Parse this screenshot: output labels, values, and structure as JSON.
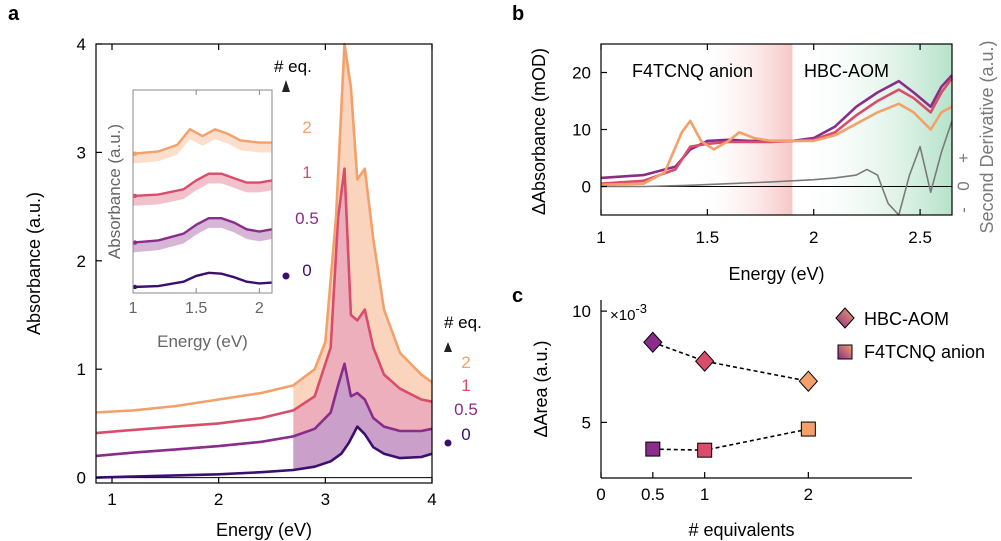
{
  "panels": {
    "a": "a",
    "b": "b",
    "c": "c"
  },
  "colors": {
    "eq0": "#3a0f6e",
    "eq05": "#8a2c8a",
    "eq1": "#d94d6a",
    "eq2": "#f4a06a",
    "gray": "#7a7a7a",
    "anion_shade": "#f8c9c9",
    "aom_shade": "#bfe6cf"
  },
  "chart_data": [
    {
      "id": "a-main",
      "type": "line",
      "xlabel": "Energy (eV)",
      "ylabel": "Absorbance (a.u.)",
      "xlim": [
        0.85,
        4.0
      ],
      "ylim": [
        -0.05,
        4.0
      ],
      "xticks": [
        "1",
        "2",
        "3",
        "4"
      ],
      "yticks": [
        "0",
        "1",
        "2",
        "3",
        "4"
      ],
      "legend_title": "# eq.",
      "legend_labels": [
        "2",
        "1",
        "0.5",
        "0"
      ],
      "series": [
        {
          "name": "0",
          "x": [
            0.85,
            1.2,
            1.6,
            2.0,
            2.4,
            2.7,
            2.9,
            3.05,
            3.15,
            3.22,
            3.3,
            3.37,
            3.45,
            3.55,
            3.7,
            3.9,
            4.0
          ],
          "y": [
            0.0,
            0.01,
            0.02,
            0.03,
            0.05,
            0.07,
            0.1,
            0.15,
            0.22,
            0.32,
            0.47,
            0.4,
            0.28,
            0.22,
            0.18,
            0.19,
            0.22
          ]
        },
        {
          "name": "0.5",
          "x": [
            0.85,
            1.2,
            1.6,
            2.0,
            2.4,
            2.7,
            2.9,
            3.05,
            3.12,
            3.18,
            3.24,
            3.3,
            3.37,
            3.45,
            3.55,
            3.7,
            3.9,
            4.0
          ],
          "y": [
            0.2,
            0.23,
            0.26,
            0.29,
            0.33,
            0.38,
            0.45,
            0.6,
            0.85,
            1.05,
            0.75,
            0.78,
            0.72,
            0.55,
            0.47,
            0.43,
            0.43,
            0.45
          ]
        },
        {
          "name": "1",
          "x": [
            0.85,
            1.2,
            1.6,
            2.0,
            2.4,
            2.7,
            2.9,
            3.05,
            3.12,
            3.18,
            3.24,
            3.3,
            3.37,
            3.45,
            3.55,
            3.7,
            3.9,
            4.0
          ],
          "y": [
            0.41,
            0.44,
            0.47,
            0.5,
            0.55,
            0.62,
            0.75,
            1.2,
            2.4,
            2.85,
            1.5,
            1.45,
            1.55,
            1.2,
            0.95,
            0.82,
            0.72,
            0.7
          ]
        },
        {
          "name": "2",
          "x": [
            0.85,
            1.2,
            1.6,
            2.0,
            2.4,
            2.7,
            2.9,
            3.0,
            3.1,
            3.18,
            3.24,
            3.3,
            3.37,
            3.45,
            3.55,
            3.7,
            3.9,
            4.0
          ],
          "y": [
            0.6,
            0.62,
            0.66,
            0.72,
            0.78,
            0.85,
            1.0,
            1.25,
            2.4,
            4.0,
            3.6,
            2.75,
            2.85,
            2.2,
            1.55,
            1.15,
            0.95,
            0.88
          ]
        }
      ],
      "shaded_bands": [
        {
          "upper": "2",
          "lower": "1",
          "color": "#f4a06a"
        },
        {
          "upper": "1",
          "lower": "0.5",
          "color": "#d94d6a"
        },
        {
          "upper": "0.5",
          "lower": "0",
          "color": "#8a2c8a"
        }
      ]
    },
    {
      "id": "a-inset",
      "type": "line",
      "xlabel": "Energy (eV)",
      "ylabel": "Absorbance (a.u.)",
      "xlim": [
        1.0,
        2.1
      ],
      "ylim": [
        0,
        4.3
      ],
      "xticks": [
        "1",
        "1.5",
        "2"
      ],
      "series": [
        {
          "name": "0",
          "x": [
            1.0,
            1.2,
            1.4,
            1.5,
            1.6,
            1.7,
            1.8,
            1.9,
            2.0,
            2.1
          ],
          "y": [
            0.0,
            0.02,
            0.12,
            0.25,
            0.32,
            0.3,
            0.22,
            0.12,
            0.08,
            0.1
          ]
        },
        {
          "name": "0.5",
          "x": [
            1.0,
            1.2,
            1.4,
            1.5,
            1.6,
            1.7,
            1.8,
            1.9,
            2.0,
            2.1
          ],
          "y": [
            1.0,
            1.05,
            1.2,
            1.4,
            1.55,
            1.55,
            1.45,
            1.3,
            1.25,
            1.3
          ]
        },
        {
          "name": "1",
          "x": [
            1.0,
            1.2,
            1.4,
            1.5,
            1.6,
            1.7,
            1.8,
            1.9,
            2.0,
            2.1
          ],
          "y": [
            2.05,
            2.08,
            2.2,
            2.4,
            2.55,
            2.55,
            2.45,
            2.35,
            2.35,
            2.4
          ]
        },
        {
          "name": "2",
          "x": [
            1.0,
            1.2,
            1.35,
            1.45,
            1.55,
            1.65,
            1.75,
            1.85,
            2.0,
            2.1
          ],
          "y": [
            3.0,
            3.05,
            3.2,
            3.55,
            3.4,
            3.55,
            3.45,
            3.3,
            3.25,
            3.25
          ]
        }
      ]
    },
    {
      "id": "b",
      "type": "line",
      "xlabel": "Energy (eV)",
      "ylabel": "ΔAbsorbance (mOD)",
      "right_ylabel": "Second Derivative (a.u.)",
      "right_ticks": [
        "+",
        "0",
        "-"
      ],
      "xlim": [
        1.0,
        2.65
      ],
      "ylim": [
        -5,
        25
      ],
      "xticks": [
        "1",
        "1.5",
        "2",
        "2.5"
      ],
      "yticks": [
        "0",
        "10",
        "20"
      ],
      "regions": [
        {
          "label": "F4TCNQ anion",
          "x0": 1.0,
          "x1": 1.9
        },
        {
          "label": "HBC-AOM",
          "x0": 1.9,
          "x1": 2.65
        }
      ],
      "series": [
        {
          "name": "0.5",
          "x": [
            1.0,
            1.2,
            1.35,
            1.42,
            1.5,
            1.6,
            1.7,
            1.8,
            1.9,
            2.0,
            2.1,
            2.2,
            2.3,
            2.4,
            2.47,
            2.55,
            2.6,
            2.65
          ],
          "y": [
            1.5,
            2.0,
            3.5,
            6.5,
            8.0,
            8.2,
            8.0,
            8.0,
            8.0,
            8.5,
            10.5,
            14.0,
            16.5,
            18.5,
            16.5,
            14.0,
            17.5,
            19.5
          ]
        },
        {
          "name": "1",
          "x": [
            1.0,
            1.2,
            1.35,
            1.42,
            1.5,
            1.6,
            1.7,
            1.8,
            1.9,
            2.0,
            2.1,
            2.2,
            2.3,
            2.4,
            2.47,
            2.55,
            2.6,
            2.65
          ],
          "y": [
            0.5,
            1.0,
            3.0,
            7.0,
            7.5,
            7.8,
            7.8,
            7.8,
            8.0,
            8.2,
            9.5,
            12.5,
            15.0,
            17.0,
            15.5,
            13.0,
            16.5,
            19.0
          ]
        },
        {
          "name": "2",
          "x": [
            1.0,
            1.2,
            1.3,
            1.38,
            1.42,
            1.47,
            1.53,
            1.6,
            1.65,
            1.72,
            1.8,
            1.9,
            2.0,
            2.1,
            2.2,
            2.3,
            2.4,
            2.47,
            2.55,
            2.6,
            2.65
          ],
          "y": [
            0.3,
            0.5,
            2.5,
            9.5,
            11.5,
            8.0,
            6.5,
            8.0,
            9.5,
            8.5,
            8.0,
            8.0,
            8.0,
            9.0,
            11.0,
            13.0,
            14.5,
            13.0,
            10.0,
            13.0,
            14.0
          ]
        },
        {
          "name": "Second Derivative",
          "x": [
            1.0,
            1.1,
            1.2,
            1.4,
            1.6,
            1.8,
            2.0,
            2.1,
            2.2,
            2.25,
            2.3,
            2.35,
            2.4,
            2.45,
            2.5,
            2.55,
            2.6,
            2.65
          ],
          "y": [
            0.0,
            0.0,
            0.0,
            0.2,
            0.5,
            0.8,
            1.2,
            1.5,
            2.0,
            3.0,
            2.0,
            -3.0,
            -5.0,
            2.0,
            7.0,
            -1.0,
            6.0,
            11.5
          ]
        }
      ]
    },
    {
      "id": "c",
      "type": "scatter",
      "xlabel": "# equivalents",
      "ylabel": "ΔArea (a.u.)",
      "scale_label": "×10",
      "scale_exp": "-3",
      "xlim": [
        0,
        3.0
      ],
      "ylim": [
        2.5,
        10.5
      ],
      "xticks": [
        "0",
        "0.5",
        "1",
        "2"
      ],
      "yticks": [
        "5",
        "10"
      ],
      "series": [
        {
          "name": "HBC-AOM",
          "marker": "diamond",
          "x": [
            0.5,
            1,
            2
          ],
          "y": [
            8.6,
            7.75,
            6.85
          ]
        },
        {
          "name": "F4TCNQ anion",
          "marker": "square",
          "x": [
            0.5,
            1,
            2
          ],
          "y": [
            3.8,
            3.75,
            4.7
          ]
        }
      ]
    }
  ]
}
